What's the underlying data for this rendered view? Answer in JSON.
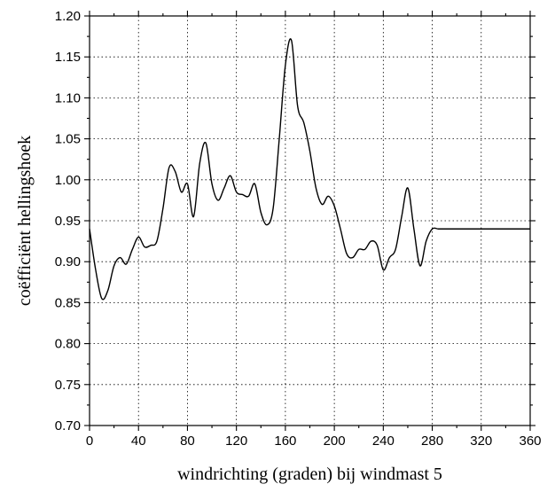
{
  "chart_data": {
    "type": "line",
    "title": "",
    "xlabel": "windrichting (graden) bij windmast 5",
    "ylabel": "coëfficiënt hellingshoek",
    "xlim": [
      0,
      360
    ],
    "ylim": [
      0.7,
      1.2
    ],
    "grid": true,
    "x_ticks": [
      "0",
      "40",
      "80",
      "120",
      "160",
      "200",
      "240",
      "280",
      "320",
      "360"
    ],
    "y_ticks": [
      "0.70",
      "0.75",
      "0.80",
      "0.85",
      "0.90",
      "0.95",
      "1.00",
      "1.05",
      "1.10",
      "1.15",
      "1.20"
    ],
    "series": [
      {
        "x": [
          0,
          5,
          10,
          15,
          20,
          25,
          30,
          35,
          40,
          45,
          50,
          55,
          60,
          65,
          70,
          75,
          80,
          85,
          90,
          95,
          100,
          105,
          110,
          115,
          120,
          125,
          130,
          135,
          140,
          145,
          150,
          155,
          160,
          165,
          170,
          175,
          180,
          185,
          190,
          195,
          200,
          205,
          210,
          215,
          220,
          225,
          230,
          235,
          240,
          245,
          250,
          255,
          260,
          265,
          270,
          275,
          280,
          285,
          290,
          295,
          300,
          305,
          310,
          315,
          320,
          325,
          330,
          335,
          340,
          345,
          350,
          355,
          360
        ],
        "y": [
          0.94,
          0.89,
          0.855,
          0.865,
          0.895,
          0.905,
          0.897,
          0.915,
          0.93,
          0.918,
          0.92,
          0.925,
          0.965,
          1.015,
          1.01,
          0.985,
          0.995,
          0.955,
          1.02,
          1.045,
          0.995,
          0.975,
          0.99,
          1.005,
          0.985,
          0.982,
          0.98,
          0.995,
          0.96,
          0.945,
          0.965,
          1.05,
          1.14,
          1.17,
          1.09,
          1.07,
          1.035,
          0.99,
          0.97,
          0.98,
          0.968,
          0.94,
          0.91,
          0.905,
          0.915,
          0.915,
          0.925,
          0.92,
          0.89,
          0.905,
          0.915,
          0.955,
          0.99,
          0.94,
          0.895,
          0.925,
          0.94,
          0.94,
          0.94,
          0.94,
          0.94,
          0.94,
          0.94,
          0.94,
          0.94,
          0.94,
          0.94,
          0.94,
          0.94,
          0.94,
          0.94,
          0.94,
          0.94
        ]
      }
    ]
  }
}
